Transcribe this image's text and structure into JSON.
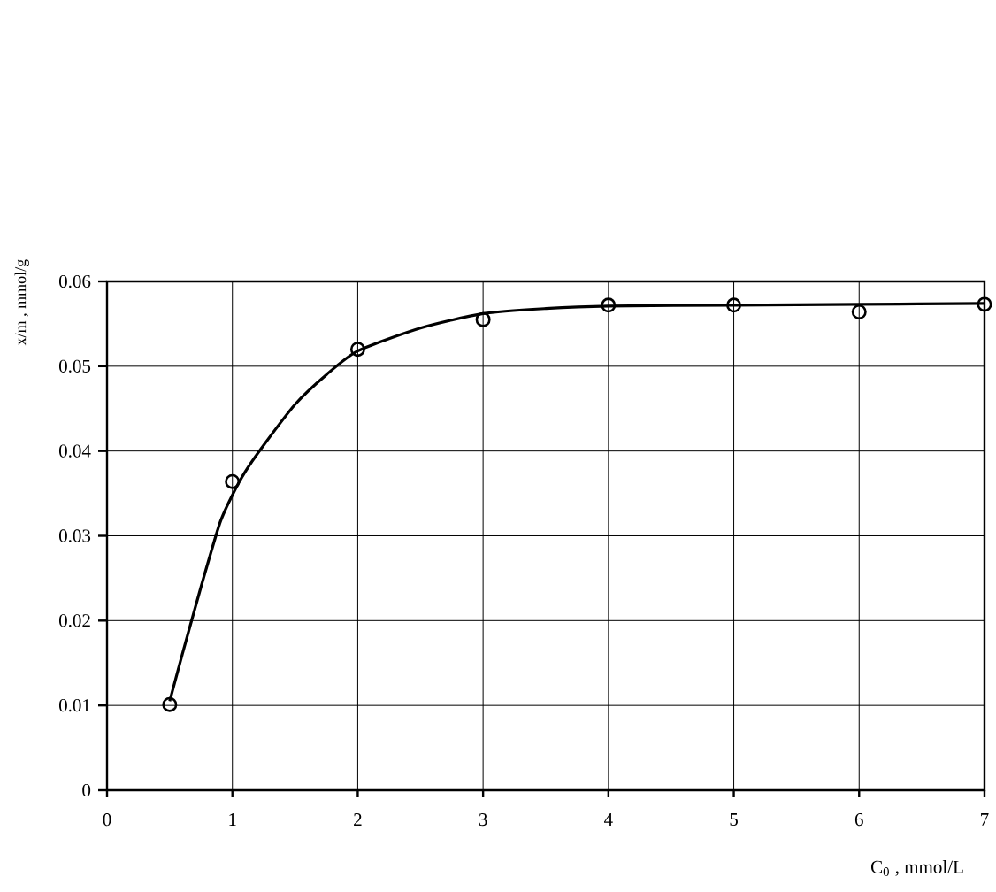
{
  "chart_data": {
    "type": "scatter",
    "xlabel": "C$_{0}$ , mmol/L",
    "ylabel": "x/m , mmol/g",
    "xlim": [
      0,
      7
    ],
    "ylim": [
      0,
      0.06
    ],
    "xticks": [
      0,
      1,
      2,
      3,
      4,
      5,
      6,
      7
    ],
    "yticks": [
      0,
      0.01,
      0.02,
      0.03,
      0.04,
      0.05,
      0.06
    ],
    "grid": true,
    "series": [
      {
        "type": "line",
        "color": "#000000",
        "marker": "none",
        "line_style": "solid",
        "x": [
          0.5,
          0.6,
          0.75,
          0.9,
          1,
          1.1,
          1.25,
          1.5,
          1.75,
          2,
          2.5,
          3,
          3.5,
          4,
          5,
          6,
          7
        ],
        "values": [
          0.0105,
          0.016,
          0.024,
          0.0315,
          0.0348,
          0.0375,
          0.0407,
          0.0455,
          0.049,
          0.0518,
          0.0545,
          0.0562,
          0.0568,
          0.0571,
          0.0572,
          0.0573,
          0.0574
        ]
      },
      {
        "color": "#000000",
        "marker": "circle",
        "x": [
          0.5,
          1,
          2,
          3,
          4,
          5,
          6,
          7
        ],
        "values": [
          0.0101,
          0.0364,
          0.052,
          0.0555,
          0.0572,
          0.0572,
          0.0564,
          0.0573
        ]
      }
    ]
  }
}
